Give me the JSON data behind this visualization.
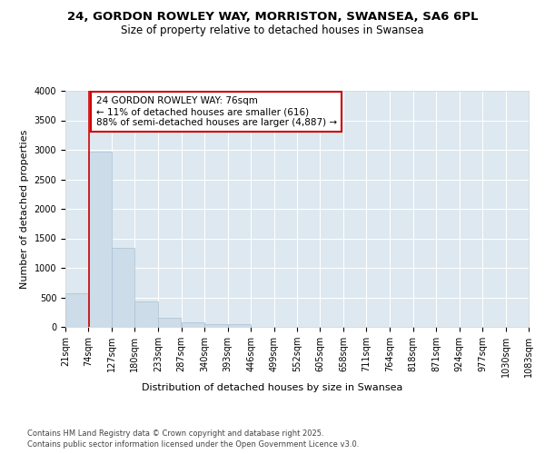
{
  "title": "24, GORDON ROWLEY WAY, MORRISTON, SWANSEA, SA6 6PL",
  "subtitle": "Size of property relative to detached houses in Swansea",
  "xlabel": "Distribution of detached houses by size in Swansea",
  "ylabel": "Number of detached properties",
  "bar_color": "#ccdce8",
  "bar_edge_color": "#aac0d4",
  "background_color": "#dde8f0",
  "grid_color": "#ffffff",
  "bin_edges": [
    21,
    74,
    127,
    180,
    233,
    287,
    340,
    393,
    446,
    499,
    552,
    605,
    658,
    711,
    764,
    818,
    871,
    924,
    977,
    1030,
    1083
  ],
  "bar_heights": [
    570,
    2970,
    1340,
    430,
    155,
    80,
    50,
    40,
    5,
    2,
    1,
    1,
    0,
    0,
    0,
    0,
    0,
    0,
    0,
    0
  ],
  "property_size": 76,
  "vline_color": "#cc0000",
  "annotation_text": "24 GORDON ROWLEY WAY: 76sqm\n← 11% of detached houses are smaller (616)\n88% of semi-detached houses are larger (4,887) →",
  "annotation_box_color": "#cc0000",
  "annotation_box_facecolor": "#ffffff",
  "ylim": [
    0,
    4000
  ],
  "yticks": [
    0,
    500,
    1000,
    1500,
    2000,
    2500,
    3000,
    3500,
    4000
  ],
  "footnote1": "Contains HM Land Registry data © Crown copyright and database right 2025.",
  "footnote2": "Contains public sector information licensed under the Open Government Licence v3.0.",
  "title_fontsize": 9.5,
  "subtitle_fontsize": 8.5,
  "axis_label_fontsize": 8,
  "tick_fontsize": 7,
  "annotation_fontsize": 7.5,
  "footnote_fontsize": 6
}
